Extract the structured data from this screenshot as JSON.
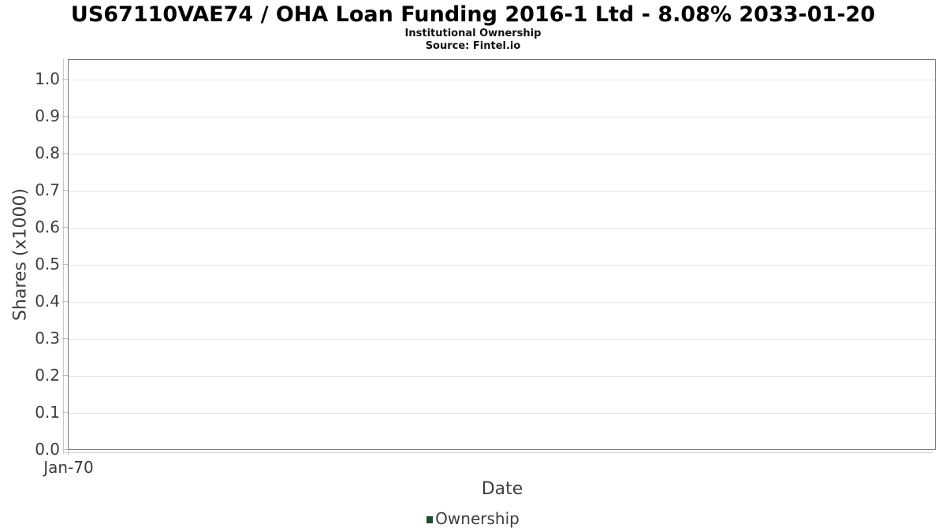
{
  "header": {
    "title": "US67110VAE74 / OHA Loan Funding 2016-1 Ltd - 8.08% 2033-01-20",
    "subtitle": "Institutional Ownership",
    "source": "Source: Fintel.io"
  },
  "chart_data": {
    "type": "line",
    "title": "US67110VAE74 / OHA Loan Funding 2016-1 Ltd - 8.08% 2033-01-20",
    "subtitle": "Institutional Ownership",
    "source": "Source: Fintel.io",
    "xlabel": "Date",
    "ylabel": "Shares (x1000)",
    "x_tick_labels": [
      "Jan-70"
    ],
    "y_tick_labels": [
      "0.0",
      "0.1",
      "0.2",
      "0.3",
      "0.4",
      "0.5",
      "0.6",
      "0.7",
      "0.8",
      "0.9",
      "1.0"
    ],
    "y_ticks": [
      0.0,
      0.1,
      0.2,
      0.3,
      0.4,
      0.5,
      0.6,
      0.7,
      0.8,
      0.9,
      1.0
    ],
    "ylim": [
      0.0,
      1.055
    ],
    "grid": "horizontal-only",
    "legend_position": "bottom-center",
    "series": [
      {
        "name": "Ownership",
        "color": "#1e4b2d",
        "x": [],
        "values": []
      }
    ],
    "plot_is_empty": true
  },
  "colors": {
    "background": "#ffffff",
    "plot_border": "#757575",
    "gridline": "#e4e4e4",
    "tick_mark": "#c0c0c0",
    "axis_text": "#3d3d3d",
    "title_text": "#000000",
    "legend_swatch": "#1e4b2d"
  }
}
